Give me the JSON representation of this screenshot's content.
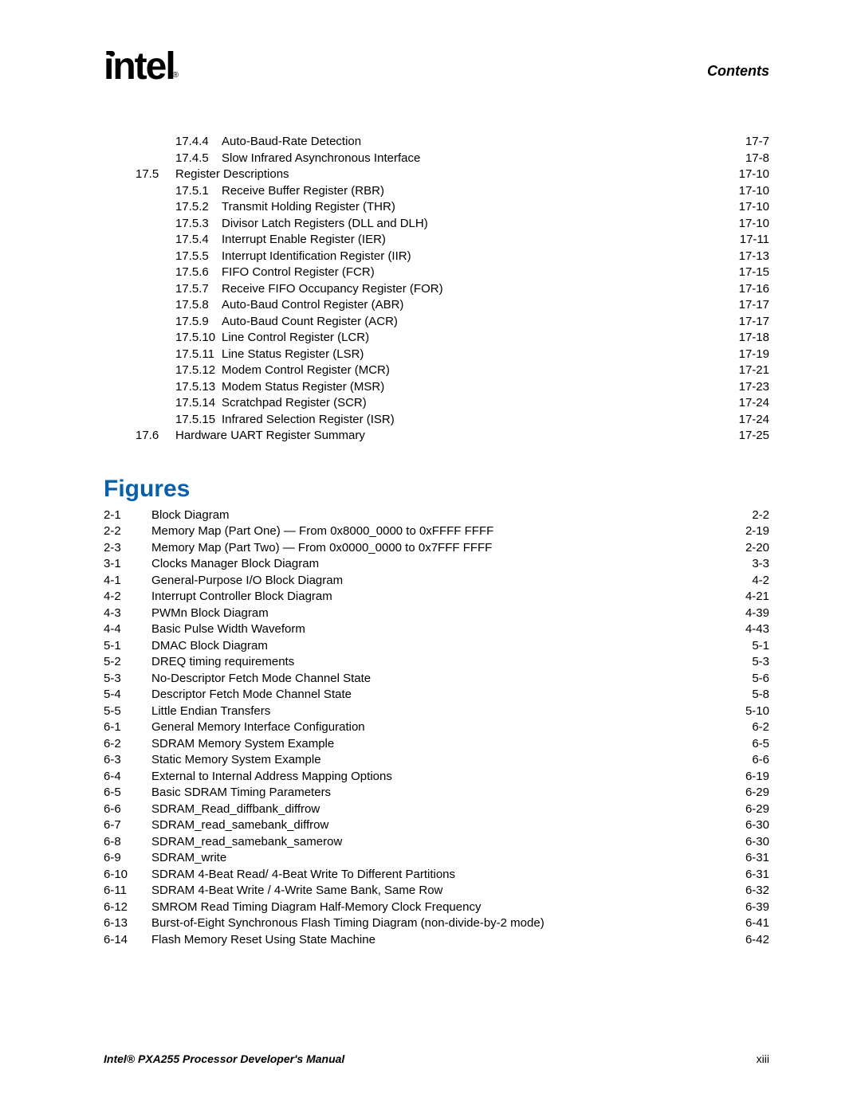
{
  "header": {
    "logo_text": "intel",
    "reg_mark": "®",
    "contents_label": "Contents"
  },
  "toc_upper": [
    {
      "indent": 1,
      "num": "17.4.4",
      "label": "Auto-Baud-Rate Detection",
      "page": "17-7"
    },
    {
      "indent": 1,
      "num": "17.4.5",
      "label": "Slow Infrared Asynchronous Interface",
      "page": "17-8"
    },
    {
      "indent": 0,
      "num": "17.5",
      "label": "Register Descriptions",
      "page": "17-10"
    },
    {
      "indent": 1,
      "num": "17.5.1",
      "label": "Receive Buffer Register (RBR)",
      "page": "17-10"
    },
    {
      "indent": 1,
      "num": "17.5.2",
      "label": "Transmit Holding Register (THR)",
      "page": "17-10"
    },
    {
      "indent": 1,
      "num": "17.5.3",
      "label": "Divisor Latch Registers (DLL and DLH)",
      "page": "17-10"
    },
    {
      "indent": 1,
      "num": "17.5.4",
      "label": "Interrupt Enable Register (IER)",
      "page": "17-11"
    },
    {
      "indent": 1,
      "num": "17.5.5",
      "label": "Interrupt Identification Register (IIR)",
      "page": "17-13"
    },
    {
      "indent": 1,
      "num": "17.5.6",
      "label": "FIFO Control Register (FCR)",
      "page": "17-15"
    },
    {
      "indent": 1,
      "num": "17.5.7",
      "label": "Receive FIFO Occupancy Register (FOR)",
      "page": "17-16"
    },
    {
      "indent": 1,
      "num": "17.5.8",
      "label": "Auto-Baud Control Register (ABR)",
      "page": "17-17"
    },
    {
      "indent": 1,
      "num": "17.5.9",
      "label": "Auto-Baud Count Register (ACR)",
      "page": "17-17"
    },
    {
      "indent": 1,
      "num": "17.5.10",
      "label": "Line Control Register (LCR)",
      "page": "17-18"
    },
    {
      "indent": 1,
      "num": "17.5.11",
      "label": "Line Status Register (LSR)",
      "page": "17-19"
    },
    {
      "indent": 1,
      "num": "17.5.12",
      "label": "Modem Control Register (MCR)",
      "page": "17-21"
    },
    {
      "indent": 1,
      "num": "17.5.13",
      "label": "Modem Status Register (MSR)",
      "page": "17-23"
    },
    {
      "indent": 1,
      "num": "17.5.14",
      "label": "Scratchpad Register (SCR)",
      "page": "17-24"
    },
    {
      "indent": 1,
      "num": "17.5.15",
      "label": "Infrared Selection Register (ISR)",
      "page": "17-24"
    },
    {
      "indent": 0,
      "num": "17.6",
      "label": "Hardware UART Register Summary",
      "page": "17-25"
    }
  ],
  "figures_heading": "Figures",
  "figures": [
    {
      "num": "2-1",
      "label": "Block Diagram",
      "page": "2-2"
    },
    {
      "num": "2-2",
      "label": "Memory Map (Part One) — From 0x8000_0000 to 0xFFFF FFFF",
      "page": "2-19"
    },
    {
      "num": "2-3",
      "label": "Memory Map (Part Two) — From 0x0000_0000 to 0x7FFF FFFF",
      "page": "2-20"
    },
    {
      "num": "3-1",
      "label": "Clocks Manager Block Diagram",
      "page": "3-3"
    },
    {
      "num": "4-1",
      "label": "General-Purpose I/O Block Diagram",
      "page": "4-2"
    },
    {
      "num": "4-2",
      "label": "Interrupt Controller Block Diagram",
      "page": "4-21"
    },
    {
      "num": "4-3",
      "label": "PWMn Block Diagram",
      "page": "4-39"
    },
    {
      "num": "4-4",
      "label": "Basic Pulse Width Waveform",
      "page": "4-43"
    },
    {
      "num": "5-1",
      "label": "DMAC Block Diagram",
      "page": "5-1"
    },
    {
      "num": "5-2",
      "label": "DREQ timing requirements",
      "page": "5-3"
    },
    {
      "num": "5-3",
      "label": "No-Descriptor Fetch Mode Channel State",
      "page": "5-6"
    },
    {
      "num": "5-4",
      "label": "Descriptor Fetch Mode Channel State",
      "page": "5-8"
    },
    {
      "num": "5-5",
      "label": "Little Endian Transfers",
      "page": "5-10"
    },
    {
      "num": "6-1",
      "label": "General Memory Interface Configuration",
      "page": "6-2"
    },
    {
      "num": "6-2",
      "label": "SDRAM Memory System Example",
      "page": "6-5"
    },
    {
      "num": "6-3",
      "label": "Static Memory System Example",
      "page": "6-6"
    },
    {
      "num": "6-4",
      "label": "External to Internal Address Mapping Options",
      "page": "6-19"
    },
    {
      "num": "6-5",
      "label": "Basic SDRAM Timing Parameters",
      "page": "6-29"
    },
    {
      "num": "6-6",
      "label": "SDRAM_Read_diffbank_diffrow",
      "page": "6-29"
    },
    {
      "num": "6-7",
      "label": "SDRAM_read_samebank_diffrow",
      "page": "6-30"
    },
    {
      "num": "6-8",
      "label": "SDRAM_read_samebank_samerow",
      "page": "6-30"
    },
    {
      "num": "6-9",
      "label": "SDRAM_write",
      "page": "6-31"
    },
    {
      "num": "6-10",
      "label": "SDRAM 4-Beat Read/ 4-Beat Write To Different Partitions",
      "page": "6-31"
    },
    {
      "num": "6-11",
      "label": "SDRAM 4-Beat Write / 4-Write Same Bank, Same Row",
      "page": "6-32"
    },
    {
      "num": "6-12",
      "label": "SMROM Read Timing Diagram Half-Memory Clock Frequency",
      "page": "6-39"
    },
    {
      "num": "6-13",
      "label": "Burst-of-Eight Synchronous Flash Timing Diagram (non-divide-by-2 mode)",
      "page": "6-41"
    },
    {
      "num": "6-14",
      "label": "Flash Memory Reset Using State Machine",
      "page": "6-42"
    }
  ],
  "footer": {
    "manual_title": "Intel® PXA255 Processor Developer's Manual",
    "page_num": "xiii"
  },
  "styling": {
    "heading_color": "#0860a8",
    "text_color": "#000000",
    "background_color": "#ffffff",
    "body_fontsize": 15,
    "heading_fontsize": 30,
    "contents_label_fontsize": 18,
    "footer_fontsize": 14,
    "logo_fontsize": 48
  }
}
